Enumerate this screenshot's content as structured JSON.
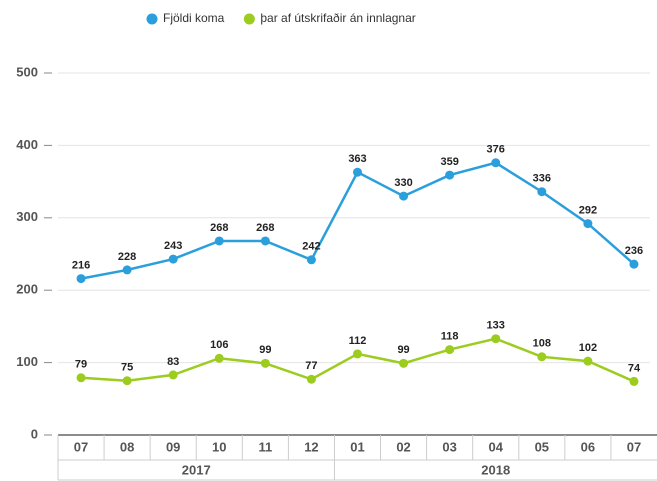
{
  "chart_data": {
    "type": "line",
    "categories": [
      "07",
      "08",
      "09",
      "10",
      "11",
      "12",
      "01",
      "02",
      "03",
      "04",
      "05",
      "06",
      "07"
    ],
    "x_groups": [
      {
        "label": "2017",
        "count": 6
      },
      {
        "label": "2018",
        "count": 7
      }
    ],
    "series": [
      {
        "name": "Fjöldi koma",
        "color": "#2b9fdc",
        "values": [
          216,
          228,
          243,
          268,
          268,
          242,
          363,
          330,
          359,
          376,
          336,
          292,
          236
        ]
      },
      {
        "name": "þar af útskrifaðir án innlagnar",
        "color": "#9ccc1e",
        "values": [
          79,
          75,
          83,
          106,
          99,
          77,
          112,
          99,
          118,
          133,
          108,
          102,
          74
        ]
      }
    ],
    "ylim": [
      0,
      500
    ],
    "yticks": [
      0,
      100,
      200,
      300,
      400,
      500
    ],
    "grid": true,
    "legend": "top"
  }
}
